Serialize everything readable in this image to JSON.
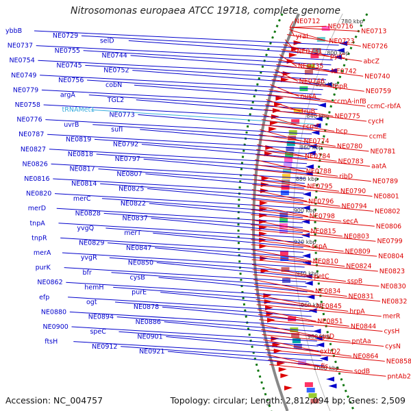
{
  "title": "Nitrosomonas europaea ATCC 19718, complete genome",
  "footer": {
    "accession": "Accession: NC_004757",
    "summary": "Topology: circular; Length: 2,812,094 bp; Genes: 2,509"
  },
  "colors": {
    "left": "#0000cc",
    "right": "#dd0000",
    "rna": "#33aadd",
    "ring": "#888888",
    "gc": "#117711"
  },
  "ticks": [
    "780 kbp",
    "800 kbp",
    "820 kbp",
    "840 kbp",
    "860 kbp",
    "880 kbp",
    "900 kbp",
    "920 kbp",
    "940 kbp",
    "960 kbp",
    "980 kbp",
    "1000 kbp"
  ],
  "left_labels": [
    "ybbB",
    "NE0729",
    "selD",
    "NE0737",
    "NE0755",
    "NE0744",
    "NE0754",
    "NE0745",
    "NE0752",
    "NE0749",
    "NE0756",
    "cobN",
    "NE0779",
    "argA",
    "TGL2",
    "NE0758",
    "tRNAMet1",
    "NE0773",
    "NE0776",
    "uvrB",
    "sufI",
    "NE0787",
    "NE0819",
    "NE0792",
    "NE0827",
    "NE0818",
    "NE0797",
    "NE0826",
    "NE0817",
    "NE0807",
    "NE0816",
    "NE0814",
    "NE0825",
    "NE0820",
    "merC",
    "NE0822",
    "merD",
    "NE0828",
    "NE0837",
    "tnpA",
    "yvgQ",
    "merT",
    "tnpR",
    "NE0829",
    "NE0847",
    "merA",
    "yvgR",
    "NE0850",
    "purK",
    "bfr",
    "cysB",
    "NE0862",
    "hemH",
    "purE",
    "efp",
    "ogt",
    "NE0878",
    "NE0880",
    "NE0894",
    "NE0886",
    "NE0900",
    "speC",
    "NE0901",
    "ftsH",
    "NE0912",
    "NE0921"
  ],
  "right_labels": [
    "NE0712",
    "NE0716",
    "NE0713",
    "yraL",
    "NE0723",
    "NE0726",
    "NE0731",
    "pyrC",
    "abcZ",
    "NE0735",
    "NE0742",
    "NE0740",
    "NE0746",
    "tnpR",
    "NE0759",
    "nusA",
    "ccmA-infB",
    "ccmC-rbfA",
    "truB",
    "NE0775",
    "cycH",
    "ccmF",
    "bcp",
    "ccmE",
    "NE0774",
    "NE0780",
    "NE0781",
    "NE0784",
    "NE0783",
    "aatA",
    "NE0788",
    "ribD",
    "NE0789",
    "NE0795",
    "NE0790",
    "NE0801",
    "NE0796",
    "NE0794",
    "NE0802",
    "NE0798",
    "secA",
    "NE0806",
    "NE0815",
    "NE0803",
    "NE0799",
    "sspA",
    "NE0809",
    "NE0804",
    "NE0810",
    "NE0824",
    "NE0823",
    "petC",
    "sspB",
    "NE0830",
    "NE0834",
    "NE0831",
    "NE0832",
    "NE0845",
    "hrpA",
    "merR",
    "NE0851",
    "NE0844",
    "cysH",
    "cysD",
    "pntAa",
    "cysN",
    "exbD2",
    "NE0864",
    "NE0858",
    "fis",
    "sodB",
    "pntAb2"
  ]
}
